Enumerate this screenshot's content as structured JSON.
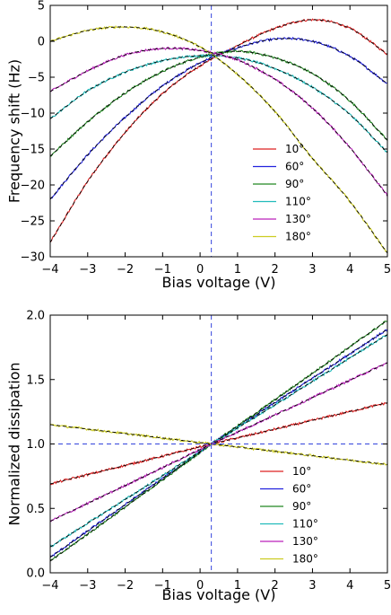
{
  "chart_data": [
    {
      "type": "line",
      "title": "",
      "xlabel": "Bias voltage (V)",
      "ylabel": "Frequency shift (Hz)",
      "xlim": [
        -4,
        5
      ],
      "ylim": [
        -30,
        5
      ],
      "xticks": [
        -4,
        -3,
        -2,
        -1,
        0,
        1,
        2,
        3,
        4,
        5
      ],
      "yticks": [
        -30,
        -25,
        -20,
        -15,
        -10,
        -5,
        0,
        5
      ],
      "xtick_labels": [
        "−4",
        "−3",
        "−2",
        "−1",
        "0",
        "1",
        "2",
        "3",
        "4",
        "5"
      ],
      "ytick_labels": [
        "−30",
        "−25",
        "−20",
        "−15",
        "−10",
        "−5",
        "0",
        "5"
      ],
      "grid": false,
      "legend_position": "lower-right",
      "vline": {
        "x": 0.3,
        "color": "#3344dd",
        "style": "dashed"
      },
      "fit_line": {
        "color": "#000000",
        "style": "dashed"
      },
      "series": [
        {
          "name": "10°",
          "color": "#dd2222",
          "x": [
            -4,
            -3,
            -2,
            -1,
            0,
            1,
            2,
            3,
            4,
            5
          ],
          "y": [
            -28.0,
            -19.5,
            -12.7,
            -7.3,
            -3.4,
            -0.6,
            1.8,
            3.0,
            1.8,
            -1.8
          ]
        },
        {
          "name": "60°",
          "color": "#2222dd",
          "x": [
            -4,
            -3,
            -2,
            -1,
            0,
            1,
            2,
            3,
            4,
            5
          ],
          "y": [
            -22.0,
            -15.8,
            -10.6,
            -6.2,
            -3.0,
            -0.9,
            0.3,
            0.0,
            -2.1,
            -5.9
          ]
        },
        {
          "name": "90°",
          "color": "#228822",
          "x": [
            -4,
            -3,
            -2,
            -1,
            0,
            1,
            2,
            3,
            4,
            5
          ],
          "y": [
            -16.0,
            -11.2,
            -7.2,
            -4.2,
            -2.2,
            -1.4,
            -2.3,
            -4.5,
            -8.3,
            -13.8
          ]
        },
        {
          "name": "110°",
          "color": "#22bbbb",
          "x": [
            -4,
            -3,
            -2,
            -1,
            0,
            1,
            2,
            3,
            4,
            5
          ],
          "y": [
            -10.8,
            -6.9,
            -4.3,
            -2.7,
            -2.0,
            -2.3,
            -3.8,
            -6.4,
            -10.2,
            -15.5
          ]
        },
        {
          "name": "130°",
          "color": "#bb22bb",
          "x": [
            -4,
            -3,
            -2,
            -1,
            0,
            1,
            2,
            3,
            4,
            5
          ],
          "y": [
            -7.0,
            -4.1,
            -1.9,
            -1.0,
            -1.3,
            -2.6,
            -5.3,
            -9.3,
            -14.8,
            -21.5
          ]
        },
        {
          "name": "180°",
          "color": "#cccc22",
          "x": [
            -4,
            -3,
            -2,
            -1,
            0,
            1,
            2,
            3,
            4,
            5
          ],
          "y": [
            0.0,
            1.5,
            2.0,
            1.3,
            -0.8,
            -4.6,
            -9.8,
            -16.3,
            -22.3,
            -29.5
          ]
        }
      ]
    },
    {
      "type": "line",
      "title": "",
      "xlabel": "Bias voltage (V)",
      "ylabel": "Normalized dissipation",
      "xlim": [
        -4,
        5
      ],
      "ylim": [
        0.0,
        2.0
      ],
      "xticks": [
        -4,
        -3,
        -2,
        -1,
        0,
        1,
        2,
        3,
        4,
        5
      ],
      "yticks": [
        0.0,
        0.5,
        1.0,
        1.5,
        2.0
      ],
      "xtick_labels": [
        "−4",
        "−3",
        "−2",
        "−1",
        "0",
        "1",
        "2",
        "3",
        "4",
        "5"
      ],
      "ytick_labels": [
        "0.0",
        "0.5",
        "1.0",
        "1.5",
        "2.0"
      ],
      "grid": false,
      "legend_position": "lower-right",
      "vline": {
        "x": 0.3,
        "color": "#3344dd",
        "style": "dashed"
      },
      "hline": {
        "y": 1.0,
        "color": "#3344dd",
        "style": "dashed"
      },
      "fit_line": {
        "color": "#000000",
        "style": "dashed"
      },
      "series": [
        {
          "name": "10°",
          "color": "#dd2222",
          "x": [
            -4,
            0.3,
            5
          ],
          "y": [
            0.69,
            1.0,
            1.32
          ]
        },
        {
          "name": "60°",
          "color": "#2222dd",
          "x": [
            -4,
            0.3,
            5
          ],
          "y": [
            0.12,
            1.0,
            1.89
          ]
        },
        {
          "name": "90°",
          "color": "#228822",
          "x": [
            -4,
            0.3,
            5
          ],
          "y": [
            0.09,
            1.0,
            1.96
          ]
        },
        {
          "name": "110°",
          "color": "#22bbbb",
          "x": [
            -4,
            0.3,
            5
          ],
          "y": [
            0.2,
            1.0,
            1.85
          ]
        },
        {
          "name": "130°",
          "color": "#bb22bb",
          "x": [
            -4,
            0.3,
            5
          ],
          "y": [
            0.4,
            1.0,
            1.63
          ]
        },
        {
          "name": "180°",
          "color": "#cccc22",
          "x": [
            -4,
            0.3,
            5
          ],
          "y": [
            1.15,
            1.0,
            0.84
          ]
        }
      ]
    }
  ]
}
